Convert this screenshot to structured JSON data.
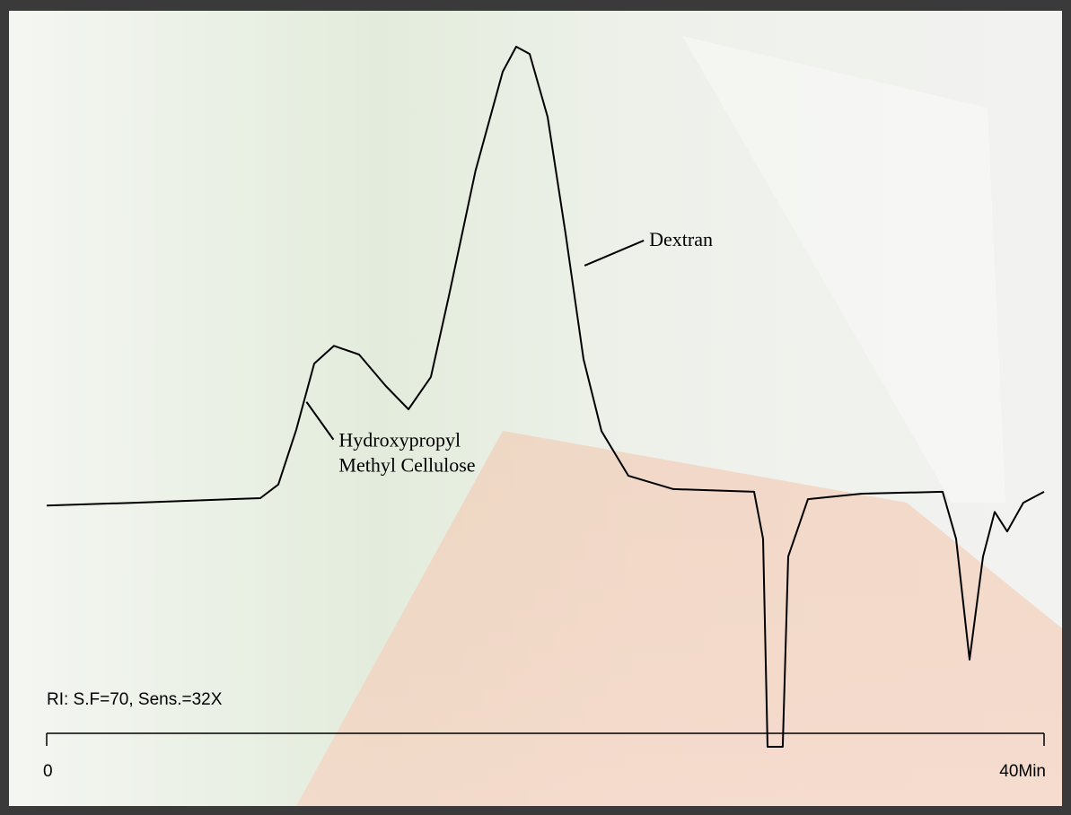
{
  "chart_data": {
    "type": "line",
    "x": [
      0,
      3.53,
      8.57,
      9.29,
      10.01,
      10.73,
      11.52,
      12.53,
      13.6,
      14.51,
      15.41,
      16.13,
      17.2,
      18.29,
      18.83,
      19.37,
      20.09,
      20.81,
      21.53,
      22.25,
      23.33,
      25.13,
      28.37,
      28.73,
      28.91,
      29.52,
      29.74,
      30.53,
      32.69,
      35.93,
      36.47,
      37.01,
      37.55,
      38.02,
      38.52,
      39.17,
      40
    ],
    "values": [
      -0.6,
      0,
      1,
      4,
      16,
      30.5,
      34.4,
      32.5,
      25.6,
      20.5,
      27.6,
      45.3,
      72.8,
      94.5,
      100,
      98.4,
      84.6,
      59,
      31.5,
      15.7,
      5.9,
      3,
      2.4,
      -7.9,
      -53.5,
      -53.5,
      -11.8,
      0.8,
      2,
      2.4,
      -7.9,
      -34.4,
      -11.8,
      -2,
      -6.3,
      0,
      2.4
    ],
    "color": "#000000",
    "xlim": [
      0,
      40
    ],
    "xticks": [
      0,
      {
        "value": 40,
        "label": "40Min"
      }
    ],
    "ylim": [
      -60,
      100
    ],
    "note": "RI: S.F=70, Sens.=32X",
    "annotations": [
      {
        "text": [
          "Dextran"
        ],
        "x": 21.5,
        "y": 52
      },
      {
        "text": [
          "Hydroxypropyl",
          "Methyl Cellulose"
        ],
        "x": 10.6,
        "y": 17
      }
    ]
  }
}
